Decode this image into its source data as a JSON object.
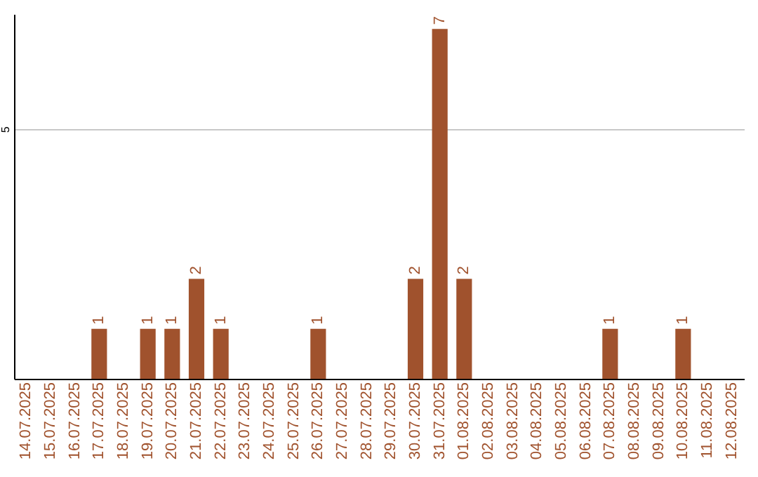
{
  "chart_data": {
    "type": "bar",
    "categories": [
      "14.07.2025",
      "15.07.2025",
      "16.07.2025",
      "17.07.2025",
      "18.07.2025",
      "19.07.2025",
      "20.07.2025",
      "21.07.2025",
      "22.07.2025",
      "23.07.2025",
      "24.07.2025",
      "25.07.2025",
      "26.07.2025",
      "27.07.2025",
      "28.07.2025",
      "29.07.2025",
      "30.07.2025",
      "31.07.2025",
      "01.08.2025",
      "02.08.2025",
      "03.08.2025",
      "04.08.2025",
      "05.08.2025",
      "06.08.2025",
      "07.08.2025",
      "08.08.2025",
      "09.08.2025",
      "10.08.2025",
      "11.08.2025",
      "12.08.2025"
    ],
    "values": [
      0,
      0,
      0,
      1,
      0,
      1,
      1,
      2,
      1,
      0,
      0,
      0,
      1,
      0,
      0,
      0,
      2,
      7,
      2,
      0,
      0,
      0,
      0,
      0,
      1,
      0,
      0,
      1,
      0,
      0
    ],
    "value_labels": [
      null,
      null,
      null,
      "1",
      null,
      "1",
      "1",
      "2",
      "1",
      null,
      null,
      null,
      "1",
      null,
      null,
      null,
      "2",
      "7",
      "2",
      null,
      null,
      null,
      null,
      null,
      "1",
      null,
      null,
      "1",
      null,
      null
    ],
    "color": "#a0522d",
    "ylim": [
      0,
      7.3
    ],
    "yticks": [
      5
    ],
    "grid": "y"
  }
}
